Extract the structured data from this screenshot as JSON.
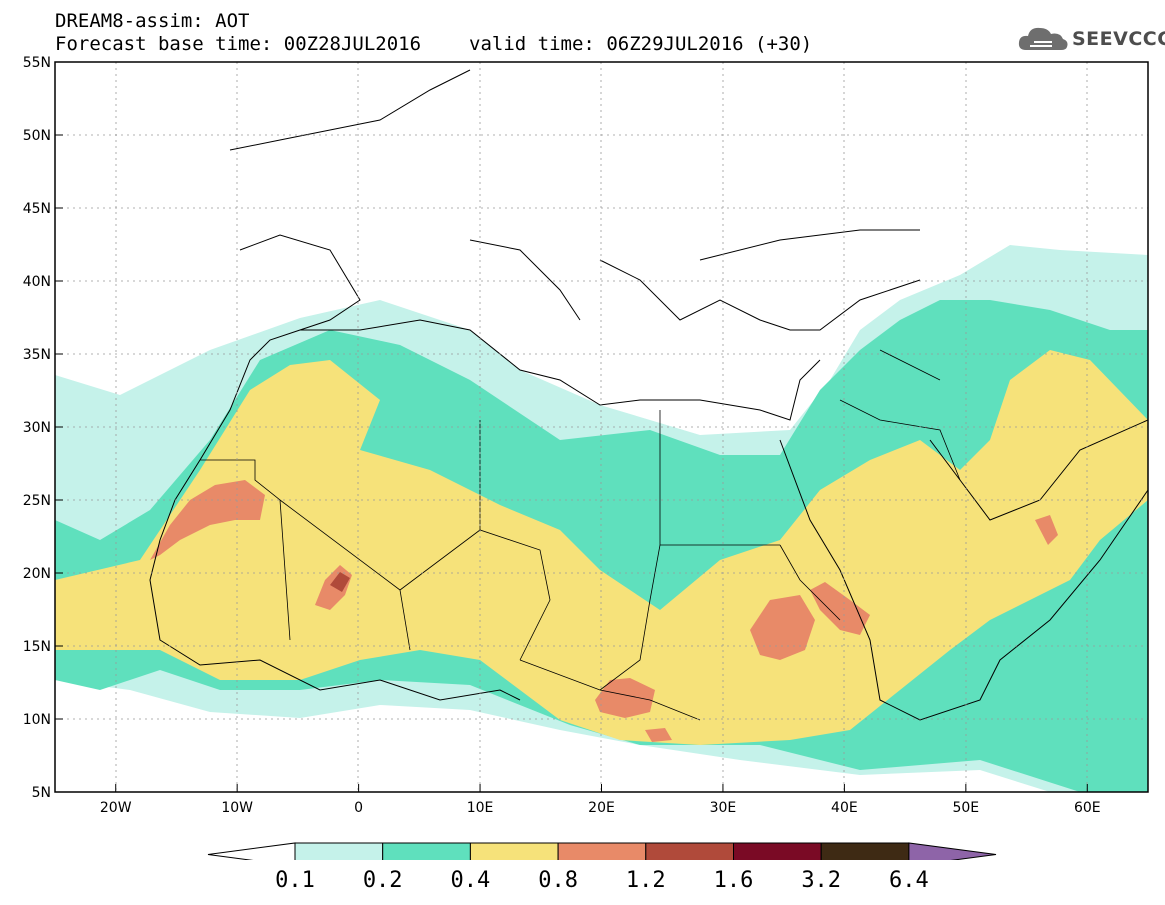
{
  "header": {
    "title": "DREAM8-assim: AOT",
    "base_time": "Forecast base time: 00Z28JUL2016",
    "valid_time": "valid time: 06Z29JUL2016 (+30)"
  },
  "logo": {
    "text": "SEEVCCC",
    "icon": "cloud-icon"
  },
  "map": {
    "lon_range": [
      -25,
      65
    ],
    "lat_range": [
      5,
      55
    ],
    "lon_ticks": [
      "20W",
      "10W",
      "0",
      "10E",
      "20E",
      "30E",
      "40E",
      "50E",
      "60E"
    ],
    "lat_ticks": [
      "5N",
      "10N",
      "15N",
      "20N",
      "25N",
      "30N",
      "35N",
      "40N",
      "45N",
      "50N",
      "55N"
    ],
    "grid": "dotted"
  },
  "colorbar": {
    "labels": [
      "0.1",
      "0.2",
      "0.4",
      "0.8",
      "1.2",
      "1.6",
      "3.2",
      "6.4"
    ],
    "colors": [
      "#ffffff",
      "#c5f2ea",
      "#5fe0bd",
      "#f6e27a",
      "#e88a68",
      "#b04a3a",
      "#7a0a25",
      "#3e2a14",
      "#8e64a8"
    ]
  }
}
